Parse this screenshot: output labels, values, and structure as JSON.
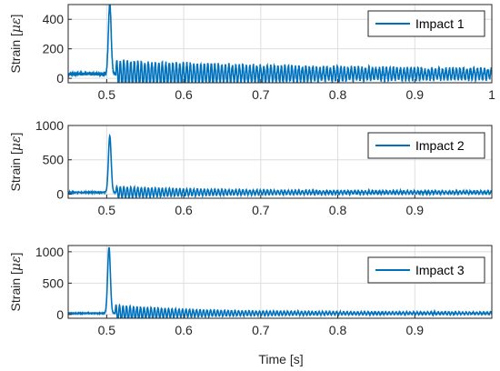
{
  "figure": {
    "xlabel": "Time [s]"
  },
  "chart_data": [
    {
      "type": "line",
      "xlim": [
        0.45,
        1.0
      ],
      "ylim": [
        -30,
        500
      ],
      "xticks": [
        0.5,
        0.6,
        0.7,
        0.8,
        0.9,
        1.0
      ],
      "xtick_labels": [
        "0.5",
        "0.6",
        "0.7",
        "0.8",
        "0.9",
        "1"
      ],
      "yticks": [
        0,
        200,
        400
      ],
      "ytick_labels": [
        "0",
        "200",
        "400"
      ],
      "ylabel_text": "Strain [",
      "ylabel_unit": "με",
      "ylabel_close": "]",
      "grid": true,
      "legend_position": "top-right",
      "series": [
        {
          "name": "Impact 1",
          "color": "#0072BD",
          "baseline": 30,
          "noise": 12,
          "peak_time": 0.504,
          "peak_value": 480,
          "osc_start": 0.512,
          "osc_amp_start": 90,
          "osc_amp_end": 25,
          "osc_decay": 0.25
        }
      ]
    },
    {
      "type": "line",
      "xlim": [
        0.45,
        1.0
      ],
      "ylim": [
        -60,
        1000
      ],
      "xticks": [
        0.5,
        0.6,
        0.7,
        0.8,
        0.9
      ],
      "xtick_labels": [
        "0.5",
        "0.6",
        "0.7",
        "0.8",
        "0.9"
      ],
      "yticks": [
        0,
        500,
        1000
      ],
      "ytick_labels": [
        "0",
        "500",
        "1000"
      ],
      "ylabel_text": "Strain [",
      "ylabel_unit": "με",
      "ylabel_close": "]",
      "grid": true,
      "legend_position": "top-right",
      "series": [
        {
          "name": "Impact 2",
          "color": "#0072BD",
          "baseline": 25,
          "noise": 6,
          "peak_time": 0.504,
          "peak_value": 820,
          "osc_start": 0.512,
          "osc_amp_start": 85,
          "osc_amp_end": 18,
          "osc_decay": 0.12
        }
      ]
    },
    {
      "type": "line",
      "xlim": [
        0.45,
        1.0
      ],
      "ylim": [
        -60,
        1100
      ],
      "xticks": [
        0.5,
        0.6,
        0.7,
        0.8,
        0.9
      ],
      "xtick_labels": [
        "0.5",
        "0.6",
        "0.7",
        "0.8",
        "0.9"
      ],
      "yticks": [
        0,
        500,
        1000
      ],
      "ytick_labels": [
        "0",
        "500",
        "1000"
      ],
      "ylabel_text": "Strain [",
      "ylabel_unit": "με",
      "ylabel_close": "]",
      "grid": true,
      "legend_position": "top-right",
      "series": [
        {
          "name": "Impact 3",
          "color": "#0072BD",
          "baseline": 20,
          "noise": 5,
          "peak_time": 0.503,
          "peak_value": 1050,
          "osc_start": 0.511,
          "osc_amp_start": 130,
          "osc_amp_end": 18,
          "osc_decay": 0.1
        }
      ]
    }
  ]
}
